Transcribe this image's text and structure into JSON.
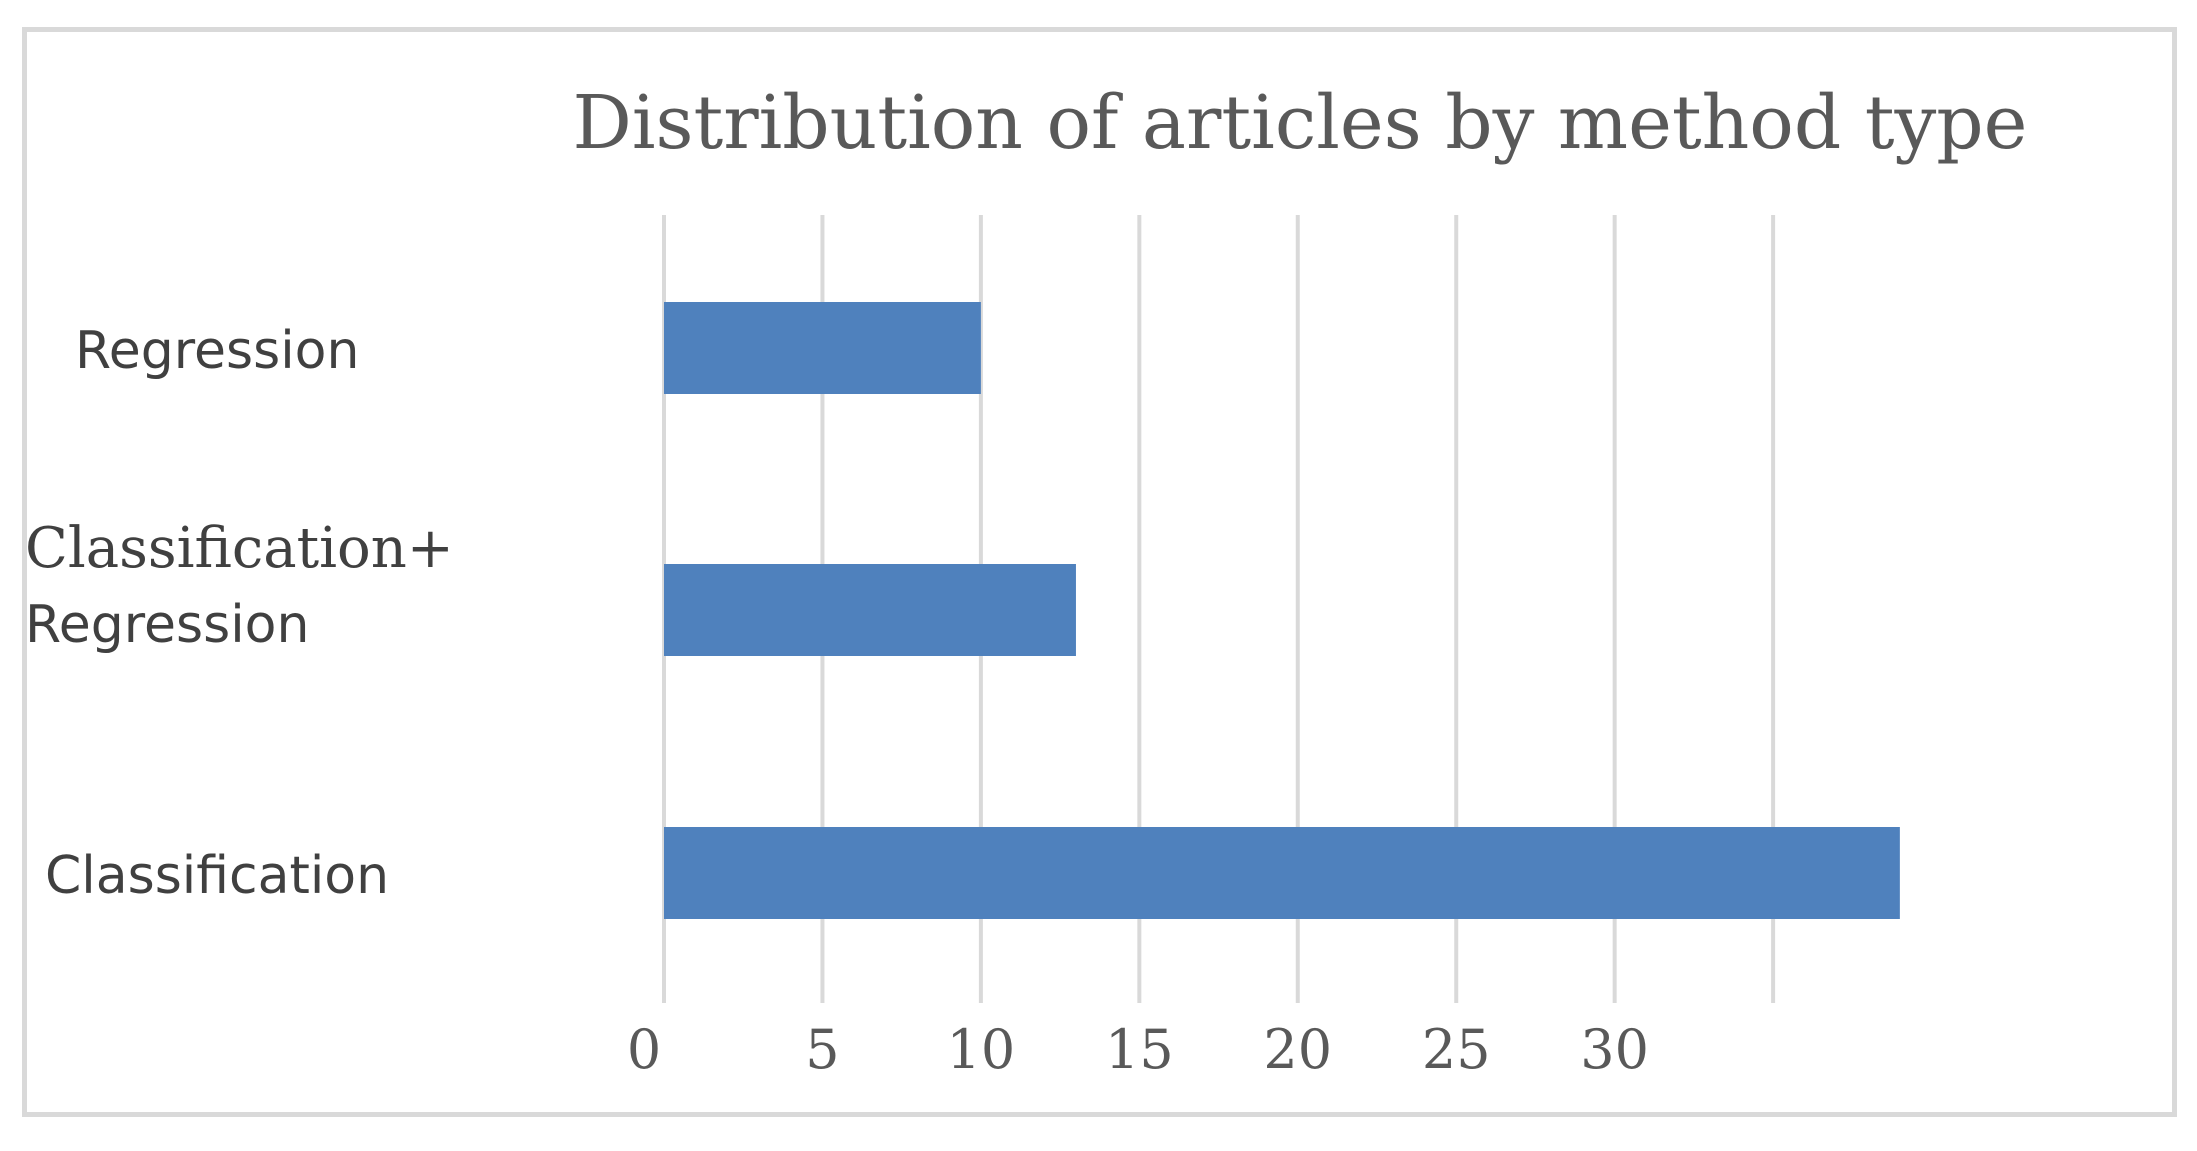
{
  "chart_data": {
    "type": "bar",
    "orientation": "horizontal",
    "title": "Distribution of articles by method type",
    "categories": [
      "Regression",
      "Classification+ Regression",
      "Classification"
    ],
    "category_lines": [
      [
        "Regression"
      ],
      [
        "Classification+",
        "Regression"
      ],
      [
        "Classification"
      ]
    ],
    "values": [
      10,
      13,
      39
    ],
    "xlim": [
      0,
      45
    ],
    "x_ticks": [
      0,
      5,
      10,
      15,
      20,
      25,
      30
    ],
    "x_tick_labels": [
      "0",
      "5",
      "10",
      "15",
      "20",
      "25",
      "30"
    ],
    "xlabel": "",
    "ylabel": "",
    "grid": "vertical",
    "legend": "none",
    "colors": {
      "bar": "#4f81bd",
      "grid": "#d9d9d9",
      "frame": "#d9d9d9",
      "title": "#595959",
      "labels": "#404040"
    }
  }
}
